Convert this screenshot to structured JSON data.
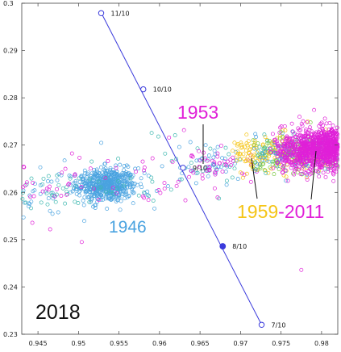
{
  "chart_data": {
    "type": "scatter",
    "xlim": [
      0.943,
      0.982
    ],
    "ylim": [
      0.23,
      0.3
    ],
    "xticks": [
      "0.945",
      "0.95",
      "0.955",
      "0.96",
      "0.965",
      "0.97",
      "0.975",
      "0.98"
    ],
    "yticks": [
      "0.23",
      "0.24",
      "0.25",
      "0.26",
      "0.27",
      "0.28",
      "0.29",
      "0.3"
    ],
    "year_label": "2018",
    "line": {
      "color": "#3b3bdc",
      "x": [
        0.9528,
        0.9726
      ],
      "y": [
        0.298,
        0.232
      ],
      "points": [
        {
          "label": "11/10",
          "x": 0.9528,
          "y": 0.2979,
          "filled": false
        },
        {
          "label": "10/10",
          "x": 0.958,
          "y": 0.2818,
          "filled": false
        },
        {
          "label": "9/10",
          "x": 0.9629,
          "y": 0.2652,
          "filled": false
        },
        {
          "label": "8/10",
          "x": 0.9678,
          "y": 0.2486,
          "filled": true
        },
        {
          "label": "7/10",
          "x": 0.9726,
          "y": 0.232,
          "filled": false
        }
      ]
    },
    "series": [
      {
        "name": "1946",
        "color": "#4aa3e0",
        "center": [
          0.9535,
          0.2615
        ],
        "spread": [
          0.0018,
          0.0018
        ]
      },
      {
        "name": "1953",
        "color": "#e020d8",
        "anchor": [
          0.9655,
          0.2655
        ]
      },
      {
        "name": "1959",
        "color": "#f5c518"
      },
      {
        "name": "2011",
        "color": "#e020d8"
      }
    ],
    "annotations": {
      "a1953": {
        "text": "1953",
        "color": "#e020d8"
      },
      "a1946": {
        "text": "1946",
        "color": "#4aa3e0"
      },
      "a1959": {
        "text": "1959",
        "color": "#f5c518"
      },
      "adash": {
        "text": "-",
        "color": "#e020d8"
      },
      "a2011": {
        "text": "2011",
        "color": "#e020d8"
      }
    }
  }
}
